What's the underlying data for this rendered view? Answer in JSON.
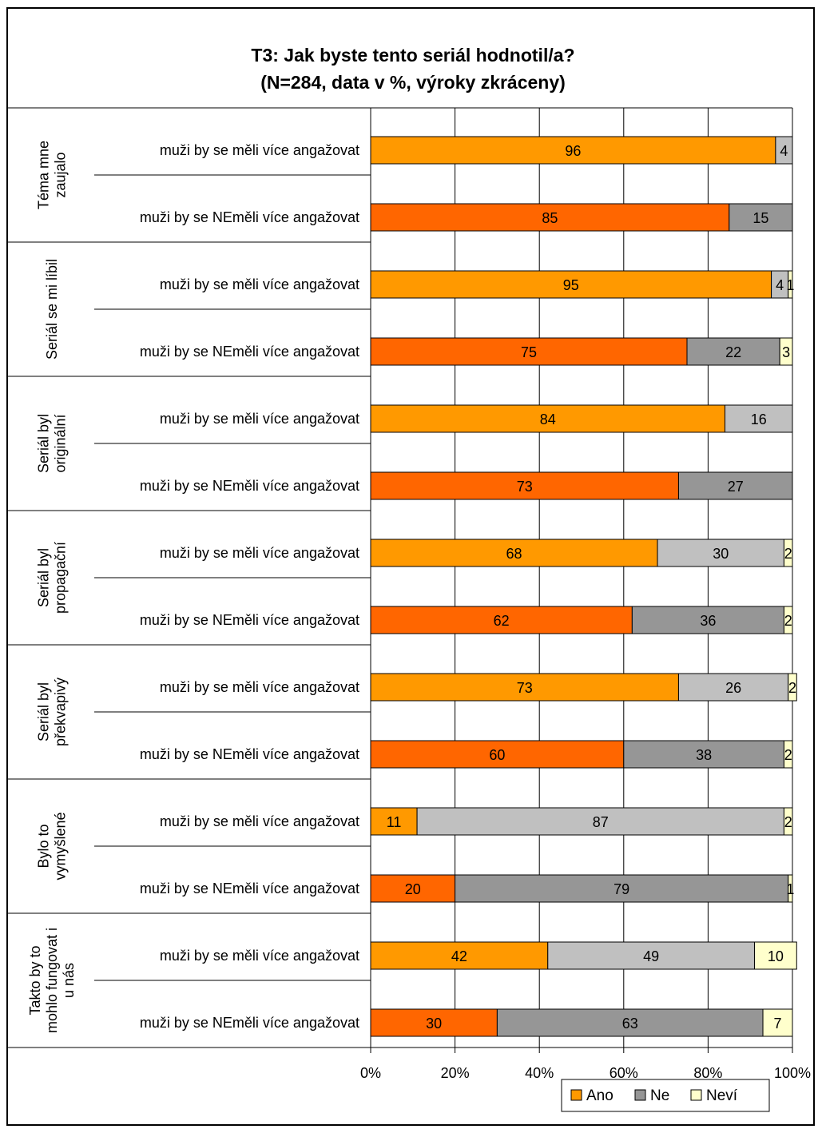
{
  "chart_data": {
    "type": "bar",
    "orientation": "horizontal",
    "stacked": "percent",
    "title": [
      "T3: Jak byste tento seriál hodnotil/a?",
      "(N=284, data v %, výroky zkráceny)"
    ],
    "groups": [
      {
        "label": [
          "Téma mne",
          "zaujalo"
        ]
      },
      {
        "label": [
          "Seriál se mi líbil"
        ]
      },
      {
        "label": [
          "Seriál byl",
          "originální"
        ]
      },
      {
        "label": [
          "Seriál byl",
          "propagační"
        ]
      },
      {
        "label": [
          "Seriál byl",
          "překvapivý"
        ]
      },
      {
        "label": [
          "Bylo to",
          "vymyšlené"
        ]
      },
      {
        "label": [
          "Takto by to",
          "mohlo fungovat i",
          "u nás"
        ]
      }
    ],
    "row_labels": [
      "muži by se měli více angažovat",
      "muži by se NEměli více angažovat"
    ],
    "rows": [
      {
        "group": 0,
        "kind": 0,
        "values": [
          96,
          4,
          0
        ],
        "labels": [
          "96",
          "4",
          ""
        ]
      },
      {
        "group": 0,
        "kind": 1,
        "values": [
          85,
          15,
          0
        ],
        "labels": [
          "85",
          "15",
          ""
        ]
      },
      {
        "group": 1,
        "kind": 0,
        "values": [
          95,
          4,
          1
        ],
        "labels": [
          "95",
          "4",
          "1"
        ]
      },
      {
        "group": 1,
        "kind": 1,
        "values": [
          75,
          22,
          3
        ],
        "labels": [
          "75",
          "22",
          "3"
        ]
      },
      {
        "group": 2,
        "kind": 0,
        "values": [
          84,
          16,
          0
        ],
        "labels": [
          "84",
          "16",
          ""
        ]
      },
      {
        "group": 2,
        "kind": 1,
        "values": [
          73,
          27,
          0
        ],
        "labels": [
          "73",
          "27",
          ""
        ]
      },
      {
        "group": 3,
        "kind": 0,
        "values": [
          68,
          30,
          2
        ],
        "labels": [
          "68",
          "30",
          "2"
        ]
      },
      {
        "group": 3,
        "kind": 1,
        "values": [
          62,
          36,
          2
        ],
        "labels": [
          "62",
          "36",
          "2"
        ]
      },
      {
        "group": 4,
        "kind": 0,
        "values": [
          73,
          26,
          2
        ],
        "labels": [
          "73",
          "26",
          "2"
        ]
      },
      {
        "group": 4,
        "kind": 1,
        "values": [
          60,
          38,
          2
        ],
        "labels": [
          "60",
          "38",
          "2"
        ]
      },
      {
        "group": 5,
        "kind": 0,
        "values": [
          11,
          87,
          2
        ],
        "labels": [
          "11",
          "87",
          "2"
        ]
      },
      {
        "group": 5,
        "kind": 1,
        "values": [
          20,
          79,
          1
        ],
        "labels": [
          "20",
          "79",
          "1"
        ]
      },
      {
        "group": 6,
        "kind": 0,
        "values": [
          42,
          49,
          10
        ],
        "labels": [
          "42",
          "49",
          "10"
        ]
      },
      {
        "group": 6,
        "kind": 1,
        "values": [
          30,
          63,
          7
        ],
        "labels": [
          "30",
          "63",
          "7"
        ]
      }
    ],
    "series": [
      {
        "name": "Ano",
        "colors": [
          "#ff9900",
          "#ff6600"
        ]
      },
      {
        "name": "Ne",
        "colors": [
          "#c0c0c0",
          "#969696"
        ]
      },
      {
        "name": "Neví",
        "colors": [
          "#ffffcc",
          "#ffffcc"
        ]
      }
    ],
    "legend": {
      "entries": [
        "Ano",
        "Ne",
        "Neví"
      ],
      "colors": [
        "#ff9900",
        "#969696",
        "#ffffcc"
      ],
      "position": "bottom-right"
    },
    "x_ticks": [
      "0%",
      "20%",
      "40%",
      "60%",
      "80%",
      "100%"
    ],
    "xlim": [
      0,
      100
    ],
    "grid": true
  }
}
